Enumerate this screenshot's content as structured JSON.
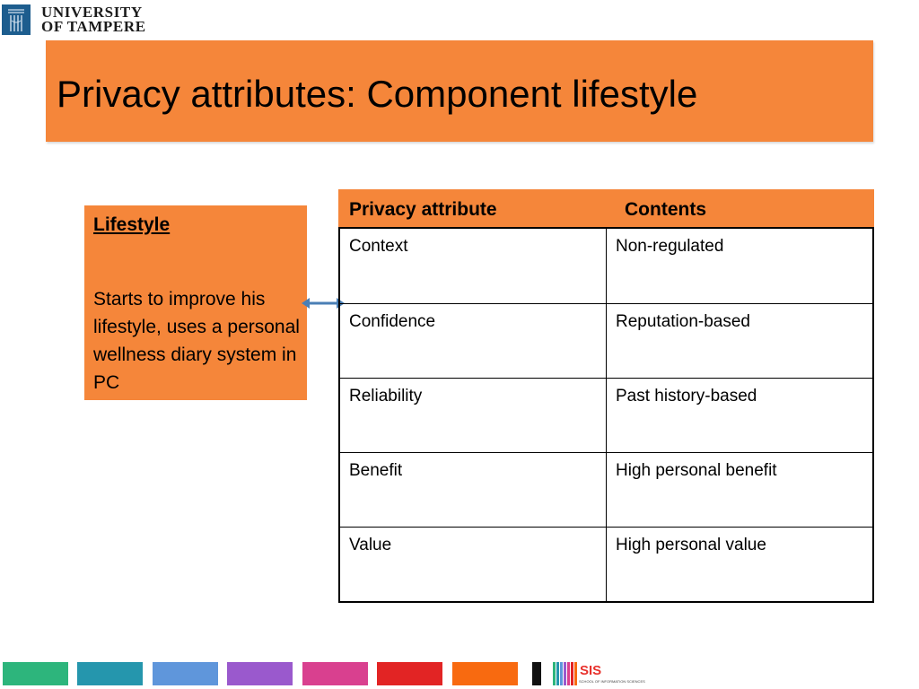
{
  "logo": {
    "line1": "UNIVERSITY",
    "line2": "OF TAMPERE",
    "brand_color": "#1d5d8e"
  },
  "title": "Privacy attributes: Component lifestyle",
  "lifestyle": {
    "heading": "Lifestyle",
    "body": "Starts to improve his lifestyle, uses a personal wellness diary system in PC"
  },
  "table": {
    "headers": [
      "Privacy attribute",
      "Contents"
    ],
    "rows": [
      [
        "Context",
        "Non-regulated"
      ],
      [
        "Confidence",
        "Reputation-based"
      ],
      [
        "Reliability",
        "Past history-based"
      ],
      [
        "Benefit",
        "High personal benefit"
      ],
      [
        "Value",
        "High personal value"
      ]
    ]
  },
  "footer": {
    "stripe_colors": [
      "#2db57c",
      "#2596ad",
      "#5f96db",
      "#9a59cd",
      "#d9408f",
      "#e22424",
      "#f86a10",
      "#111111"
    ],
    "sis_label": "SIS",
    "sis_sub": "SCHOOL OF INFORMATION SCIENCES"
  },
  "colors": {
    "accent": "#f5863a",
    "arrow": "#4a7fb5"
  }
}
